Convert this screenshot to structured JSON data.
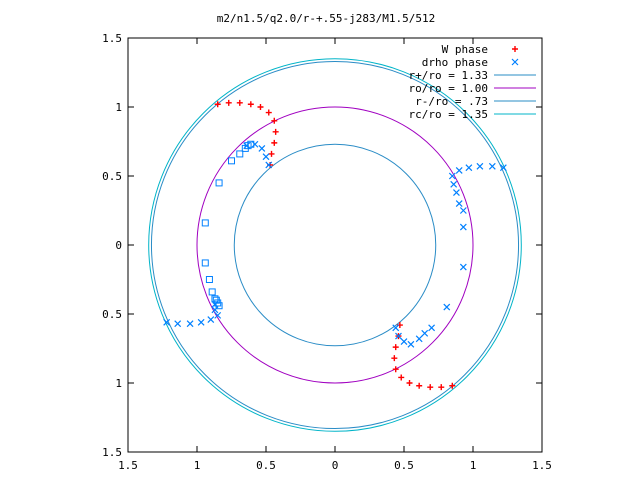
{
  "chart_data": {
    "type": "scatter",
    "title": "m2/n1.5/q2.0/r-+.55-j283/M1.5/512",
    "xlim": [
      -1.5,
      1.5
    ],
    "ylim": [
      -1.5,
      1.5
    ],
    "xticks": [
      -1.5,
      -1,
      -0.5,
      0,
      0.5,
      1,
      1.5
    ],
    "xtick_labels": [
      "1.5",
      "1",
      "0.5",
      "0",
      "0.5",
      "1",
      "1.5"
    ],
    "yticks": [
      1.5,
      1,
      0.5,
      0,
      -0.5,
      -1,
      -1.5
    ],
    "ytick_labels": [
      "1.5",
      "1",
      "0.5",
      "0",
      "0.5",
      "1",
      "1.5"
    ],
    "grid": false,
    "legend_position": "top-right",
    "series": [
      {
        "name": "W phase",
        "marker": "plus",
        "color": "#ff0000",
        "points": [
          [
            -0.85,
            1.02
          ],
          [
            -0.77,
            1.03
          ],
          [
            -0.69,
            1.03
          ],
          [
            -0.61,
            1.02
          ],
          [
            -0.54,
            1.0
          ],
          [
            -0.48,
            0.96
          ],
          [
            -0.44,
            0.9
          ],
          [
            -0.43,
            0.82
          ],
          [
            -0.44,
            0.74
          ],
          [
            -0.46,
            0.66
          ],
          [
            -0.47,
            0.58
          ],
          [
            0.85,
            -1.02
          ],
          [
            0.77,
            -1.03
          ],
          [
            0.69,
            -1.03
          ],
          [
            0.61,
            -1.02
          ],
          [
            0.54,
            -1.0
          ],
          [
            0.48,
            -0.96
          ],
          [
            0.44,
            -0.9
          ],
          [
            0.43,
            -0.82
          ],
          [
            0.44,
            -0.74
          ],
          [
            0.46,
            -0.66
          ],
          [
            0.47,
            -0.58
          ]
        ]
      },
      {
        "name": "drho phase",
        "marker": "cross",
        "color": "#0080ff",
        "points": [
          [
            -1.22,
            -0.56
          ],
          [
            -1.14,
            -0.57
          ],
          [
            -1.05,
            -0.57
          ],
          [
            -0.97,
            -0.56
          ],
          [
            -0.9,
            -0.54
          ],
          [
            -0.85,
            -0.51
          ],
          [
            -0.87,
            -0.47
          ],
          [
            -0.87,
            -0.43
          ],
          [
            -0.48,
            0.58
          ],
          [
            -0.5,
            0.64
          ],
          [
            -0.53,
            0.7
          ],
          [
            -0.58,
            0.73
          ],
          [
            -0.64,
            0.72
          ],
          [
            1.22,
            0.56
          ],
          [
            1.14,
            0.57
          ],
          [
            1.05,
            0.57
          ],
          [
            0.97,
            0.56
          ],
          [
            0.9,
            0.54
          ],
          [
            0.85,
            0.5
          ],
          [
            0.86,
            0.44
          ],
          [
            0.88,
            0.38
          ],
          [
            0.9,
            0.3
          ],
          [
            0.93,
            0.25
          ],
          [
            0.93,
            0.13
          ],
          [
            0.93,
            -0.16
          ],
          [
            0.81,
            -0.45
          ],
          [
            0.7,
            -0.6
          ],
          [
            0.65,
            -0.64
          ],
          [
            0.61,
            -0.68
          ],
          [
            0.55,
            -0.72
          ],
          [
            0.5,
            -0.7
          ],
          [
            0.46,
            -0.66
          ],
          [
            0.44,
            -0.6
          ]
        ]
      },
      {
        "name": "",
        "marker": "square",
        "color": "#0080ff",
        "points": [
          [
            -0.75,
            0.61
          ],
          [
            -0.69,
            0.66
          ],
          [
            -0.65,
            0.7
          ],
          [
            -0.63,
            0.72
          ],
          [
            -0.61,
            0.73
          ],
          [
            -0.84,
            0.45
          ],
          [
            -0.94,
            0.16
          ],
          [
            -0.94,
            -0.13
          ],
          [
            -0.91,
            -0.25
          ],
          [
            -0.89,
            -0.34
          ],
          [
            -0.87,
            -0.39
          ],
          [
            -0.86,
            -0.4
          ],
          [
            -0.85,
            -0.42
          ],
          [
            -0.84,
            -0.44
          ]
        ]
      }
    ],
    "circles": [
      {
        "label": "r+/ro = 1.33",
        "r": 1.33,
        "color": "#2a8cc6"
      },
      {
        "label": "ro/ro = 1.00",
        "r": 1.0,
        "color": "#a000c0"
      },
      {
        "label": "r-/ro = .73",
        "r": 0.73,
        "color": "#2a8cc6"
      },
      {
        "label": "rc/ro = 1.35",
        "r": 1.35,
        "color": "#00b4c8"
      }
    ]
  }
}
